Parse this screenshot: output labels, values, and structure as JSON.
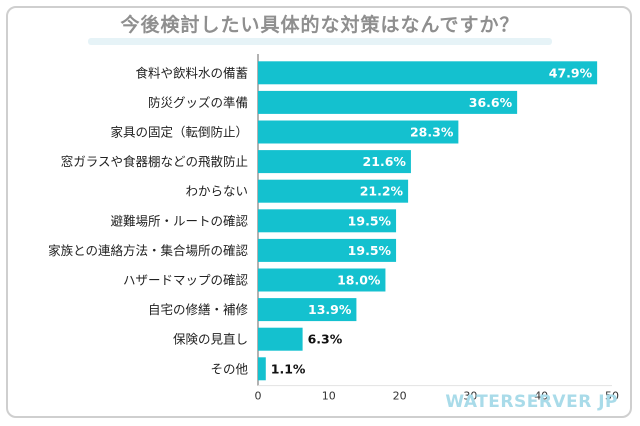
{
  "brand": "WATERSERVER JP",
  "colors": {
    "bar": "#14c1cf",
    "axis": "#666666",
    "grid": "#e3e3e3",
    "title": "#8f8f8f"
  },
  "chart_data": {
    "type": "bar",
    "orientation": "horizontal",
    "title": "今後検討したい具体的な対策はなんですか？",
    "categories": [
      "食料や飲料水の備蓄",
      "防災グッズの準備",
      "家具の固定（転倒防止）",
      "窓ガラスや食器棚などの飛散防止",
      "わからない",
      "避難場所・ルートの確認",
      "家族との連絡方法・集合場所の確認",
      "ハザードマップの確認",
      "自宅の修繕・補修",
      "保険の見直し",
      "その他"
    ],
    "values": [
      47.9,
      36.6,
      28.3,
      21.6,
      21.2,
      19.5,
      19.5,
      18.0,
      13.9,
      6.3,
      1.1
    ],
    "value_labels": [
      "47.9%",
      "36.6%",
      "28.3%",
      "21.6%",
      "21.2%",
      "19.5%",
      "19.5%",
      "18.0%",
      "13.9%",
      "6.3%",
      "1.1%"
    ],
    "xlim": [
      0,
      50
    ],
    "xticks": [
      0,
      10,
      20,
      30,
      40,
      50
    ],
    "xtick_labels": [
      "0",
      "10",
      "20",
      "30",
      "40",
      "50"
    ],
    "grid": false
  }
}
